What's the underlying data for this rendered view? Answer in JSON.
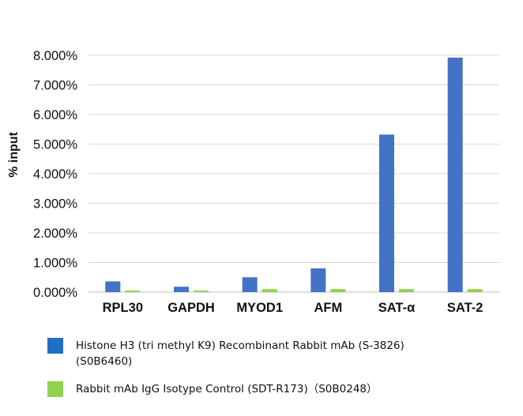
{
  "chart_data": {
    "type": "bar",
    "ylabel": "% input",
    "xlabel": "",
    "title": "",
    "categories": [
      "RPL30",
      "GAPDH",
      "MYOD1",
      "AFM",
      "SAT-α",
      "SAT-2"
    ],
    "ylim": [
      0,
      8
    ],
    "yticks": [
      "0.000%",
      "1.000%",
      "2.000%",
      "3.000%",
      "4.000%",
      "5.000%",
      "6.000%",
      "7.000%",
      "8.000%"
    ],
    "grid": true,
    "legend_position": "bottom",
    "series": [
      {
        "name": "Histone H3 (tri methyl K9) Recombinant Rabbit mAb (S-3826)\n(S0B6460)",
        "color": "#4472c4",
        "values": [
          0.36,
          0.18,
          0.5,
          0.8,
          5.32,
          7.92
        ]
      },
      {
        "name": "Rabbit mAb IgG Isotype Control (SDT-R173)（S0B0248）",
        "color": "#92d050",
        "values": [
          0.05,
          0.05,
          0.1,
          0.1,
          0.1,
          0.1
        ]
      }
    ]
  },
  "legend": {
    "item1_line1": "Histone H3 (tri methyl K9) Recombinant Rabbit mAb (S-3826)",
    "item1_line2": "(S0B6460)",
    "item1_color": "#1f6fc5",
    "item2_text": "Rabbit mAb IgG Isotype Control (SDT-R173)（S0B0248）",
    "item2_color": "#92d050"
  }
}
